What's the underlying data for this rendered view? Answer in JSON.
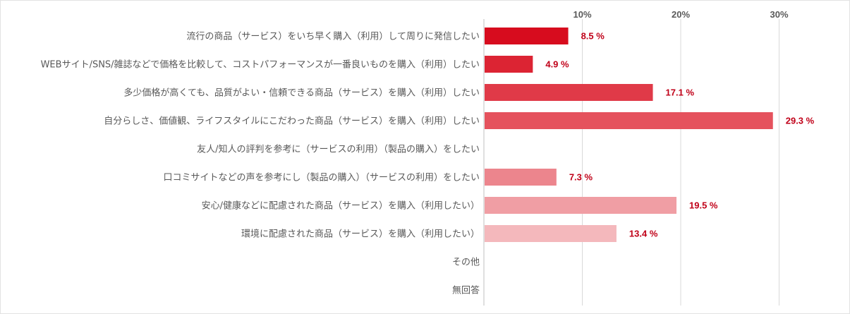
{
  "chart_data": {
    "type": "bar",
    "orientation": "horizontal",
    "categories": [
      "流行の商品（サービス）をいち早く購入（利用）して周りに発信したい",
      "WEBサイト/SNS/雑誌などで価格を比較して、コストパフォーマンスが一番良いものを購入（利用）したい",
      "多少価格が高くても、品質がよい・信頼できる商品（サービス）を購入（利用）したい",
      "自分らしさ、価値観、ライフスタイルにこだわった商品（サービス）を購入（利用）したい",
      "友人/知人の評判を参考に（サービスの利用）（製品の購入）をしたい",
      "口コミサイトなどの声を参考にし（製品の購入）（サービスの利用）をしたい",
      "安心/健康などに配慮された商品（サービス）を購入（利用したい）",
      "環境に配慮された商品（サービス）を購入（利用したい）",
      "その他",
      "無回答"
    ],
    "values": [
      8.5,
      4.9,
      17.1,
      29.3,
      null,
      7.3,
      19.5,
      13.4,
      null,
      null
    ],
    "data_labels": [
      "8.5 %",
      "4.9 %",
      "17.1 %",
      "29.3 %",
      "",
      "7.3 %",
      "19.5 %",
      "13.4 %",
      "",
      ""
    ],
    "bar_colors": [
      "#d70c1e",
      "#dc2433",
      "#e03a48",
      "#e5525d",
      "#e5525d",
      "#ec858d",
      "#f09ea4",
      "#f4b8bc",
      "#f4b8bc",
      "#f4b8bc"
    ],
    "label_color": "#c00018",
    "ticks": [
      10,
      20,
      30
    ],
    "tick_labels": [
      "10%",
      "20%",
      "30%"
    ],
    "xlim": [
      0,
      32
    ],
    "grid": true,
    "legend": "none"
  }
}
